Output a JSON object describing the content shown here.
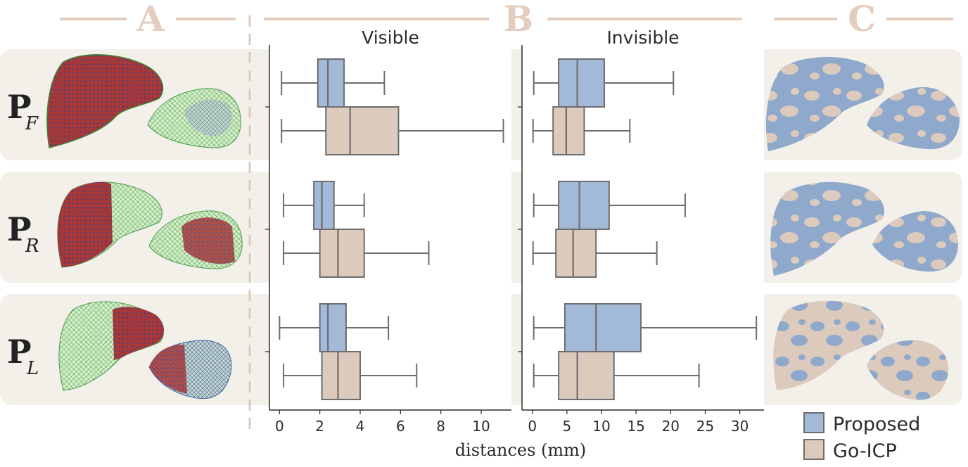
{
  "sections": [
    "A",
    "B",
    "C"
  ],
  "rows": [
    {
      "label": "P",
      "subscript": "F"
    },
    {
      "label": "P",
      "subscript": "R"
    },
    {
      "label": "P",
      "subscript": "L"
    }
  ],
  "colors": {
    "proposed": "#a3b9d8",
    "go_icp": "#dccabd",
    "panel_bg": "#f3f0ea",
    "line": "#6d6d6d",
    "section": "#e2cdbf"
  },
  "chart_data": [
    {
      "type": "box",
      "title": "Visible",
      "xlabel": "distances (mm)",
      "xlim": [
        -0.5,
        11.5
      ],
      "ticks": [
        0,
        2,
        4,
        6,
        8,
        10
      ],
      "categories": [
        "P_F",
        "P_R",
        "P_L"
      ],
      "series": [
        {
          "name": "Proposed",
          "boxes": [
            {
              "whislo": 0.1,
              "q1": 1.9,
              "med": 2.4,
              "q3": 3.2,
              "whishi": 5.2
            },
            {
              "whislo": 0.2,
              "q1": 1.7,
              "med": 2.1,
              "q3": 2.7,
              "whishi": 4.2
            },
            {
              "whislo": 0.0,
              "q1": 2.0,
              "med": 2.4,
              "q3": 3.3,
              "whishi": 5.4
            }
          ]
        },
        {
          "name": "Go-ICP",
          "boxes": [
            {
              "whislo": 0.1,
              "q1": 2.3,
              "med": 3.5,
              "q3": 5.9,
              "whishi": 11.1
            },
            {
              "whislo": 0.2,
              "q1": 2.0,
              "med": 2.9,
              "q3": 4.2,
              "whishi": 7.4
            },
            {
              "whislo": 0.2,
              "q1": 2.1,
              "med": 2.9,
              "q3": 4.0,
              "whishi": 6.8
            }
          ]
        }
      ]
    },
    {
      "type": "box",
      "title": "Invisible",
      "xlabel": "distances (mm)",
      "xlim": [
        -1.5,
        33.5
      ],
      "ticks": [
        0,
        5,
        10,
        15,
        20,
        25,
        30
      ],
      "categories": [
        "P_F",
        "P_R",
        "P_L"
      ],
      "series": [
        {
          "name": "Proposed",
          "boxes": [
            {
              "whislo": 0.2,
              "q1": 3.8,
              "med": 6.5,
              "q3": 10.4,
              "whishi": 20.4
            },
            {
              "whislo": 0.2,
              "q1": 3.8,
              "med": 6.8,
              "q3": 11.1,
              "whishi": 22.1
            },
            {
              "whislo": 0.2,
              "q1": 4.7,
              "med": 9.2,
              "q3": 15.7,
              "whishi": 32.4
            }
          ]
        },
        {
          "name": "Go-ICP",
          "boxes": [
            {
              "whislo": 0.1,
              "q1": 3.0,
              "med": 4.9,
              "q3": 7.5,
              "whishi": 14.1
            },
            {
              "whislo": 0.1,
              "q1": 3.4,
              "med": 5.9,
              "q3": 9.2,
              "whishi": 18.0
            },
            {
              "whislo": 0.2,
              "q1": 3.8,
              "med": 6.5,
              "q3": 11.8,
              "whishi": 24.1
            }
          ]
        }
      ]
    }
  ],
  "legend": [
    {
      "label": "Proposed",
      "color": "#a3b9d8"
    },
    {
      "label": "Go-ICP",
      "color": "#dccabd"
    }
  ]
}
